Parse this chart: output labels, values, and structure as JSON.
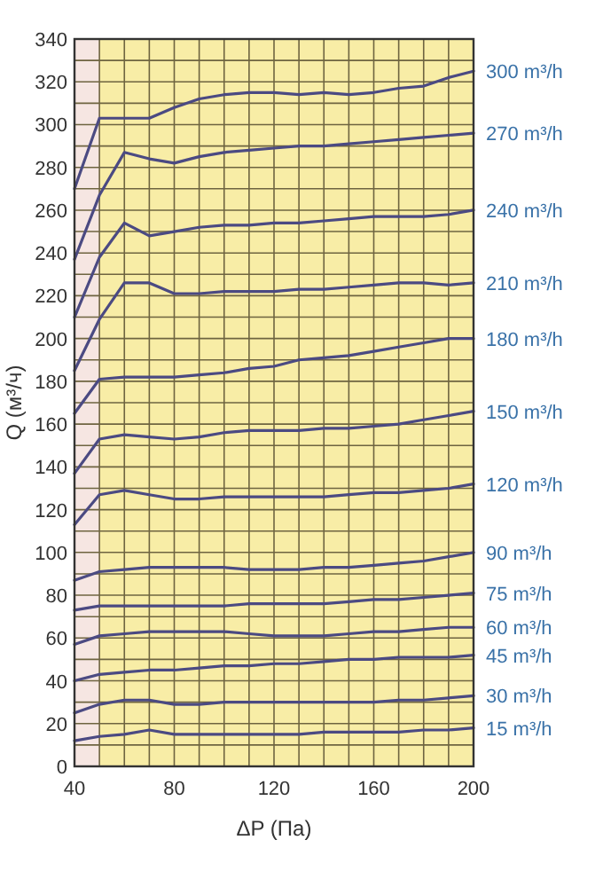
{
  "chart_data": {
    "type": "line",
    "xlabel": "ΔP (Па)",
    "ylabel": "Q (м³/ч)",
    "x": [
      40,
      50,
      60,
      70,
      80,
      90,
      100,
      110,
      120,
      130,
      140,
      150,
      160,
      170,
      180,
      190,
      200
    ],
    "xlim": [
      40,
      200
    ],
    "ylim": [
      0,
      340
    ],
    "xticks": [
      40,
      {
        "value": 50,
        "label": null
      },
      {
        "value": 60,
        "label": null
      },
      {
        "value": 70,
        "label": null
      },
      80,
      {
        "value": 90,
        "label": null
      },
      {
        "value": 100,
        "label": null
      },
      {
        "value": 110,
        "label": null
      },
      120,
      {
        "value": 130,
        "label": null
      },
      {
        "value": 140,
        "label": null
      },
      {
        "value": 150,
        "label": null
      },
      160,
      {
        "value": 170,
        "label": null
      },
      {
        "value": 180,
        "label": null
      },
      {
        "value": 190,
        "label": null
      },
      200
    ],
    "yticks": [
      0,
      {
        "value": 10,
        "label": null
      },
      20,
      {
        "value": 30,
        "label": null
      },
      40,
      {
        "value": 50,
        "label": null
      },
      60,
      {
        "value": 70,
        "label": null
      },
      80,
      {
        "value": 90,
        "label": null
      },
      100,
      {
        "value": 110,
        "label": null
      },
      120,
      {
        "value": 130,
        "label": null
      },
      140,
      {
        "value": 150,
        "label": null
      },
      160,
      {
        "value": 170,
        "label": null
      },
      180,
      {
        "value": 190,
        "label": null
      },
      200,
      {
        "value": 210,
        "label": null
      },
      220,
      {
        "value": 230,
        "label": null
      },
      240,
      {
        "value": 250,
        "label": null
      },
      260,
      {
        "value": 270,
        "label": null
      },
      280,
      {
        "value": 290,
        "label": null
      },
      300,
      {
        "value": 310,
        "label": null
      },
      320,
      {
        "value": 330,
        "label": null
      },
      340
    ],
    "grid": true,
    "legend": false,
    "line_style": "solid",
    "bands": [
      {
        "axis": "x",
        "from": 40,
        "to": 50,
        "color": "#f6e6e2"
      }
    ],
    "series": [
      {
        "name": "300 m³/h",
        "color": "#4b4a82",
        "values": [
          270,
          303,
          303,
          303,
          308,
          312,
          314,
          315,
          315,
          314,
          315,
          314,
          315,
          317,
          318,
          322,
          325
        ]
      },
      {
        "name": "270 m³/h",
        "color": "#4b4a82",
        "values": [
          237,
          267,
          287,
          284,
          282,
          285,
          287,
          288,
          289,
          290,
          290,
          291,
          292,
          293,
          294,
          295,
          296
        ]
      },
      {
        "name": "240 m³/h",
        "color": "#4b4a82",
        "values": [
          210,
          238,
          254,
          248,
          250,
          252,
          253,
          253,
          254,
          254,
          255,
          256,
          257,
          257,
          257,
          258,
          260
        ]
      },
      {
        "name": "210 m³/h",
        "color": "#4b4a82",
        "values": [
          185,
          209,
          226,
          226,
          221,
          221,
          222,
          222,
          222,
          223,
          223,
          224,
          225,
          226,
          226,
          225,
          226
        ]
      },
      {
        "name": "180 m³/h",
        "color": "#4b4a82",
        "values": [
          165,
          181,
          182,
          182,
          182,
          183,
          184,
          186,
          187,
          190,
          191,
          192,
          194,
          196,
          198,
          200,
          200
        ]
      },
      {
        "name": "150 m³/h",
        "color": "#4b4a82",
        "values": [
          137,
          153,
          155,
          154,
          153,
          154,
          156,
          157,
          157,
          157,
          158,
          158,
          159,
          160,
          162,
          164,
          166
        ]
      },
      {
        "name": "120 m³/h",
        "color": "#4b4a82",
        "values": [
          113,
          127,
          129,
          127,
          125,
          125,
          126,
          126,
          126,
          126,
          126,
          127,
          128,
          128,
          129,
          130,
          132
        ]
      },
      {
        "name": "90 m³/h",
        "color": "#4b4a82",
        "values": [
          87,
          91,
          92,
          93,
          93,
          93,
          93,
          92,
          92,
          92,
          93,
          93,
          94,
          95,
          96,
          98,
          100
        ]
      },
      {
        "name": "75 m³/h",
        "color": "#4b4a82",
        "values": [
          73,
          75,
          75,
          75,
          75,
          75,
          75,
          76,
          76,
          76,
          76,
          77,
          78,
          78,
          79,
          80,
          81
        ]
      },
      {
        "name": "60 m³/h",
        "color": "#4b4a82",
        "values": [
          57,
          61,
          62,
          63,
          63,
          63,
          63,
          62,
          61,
          61,
          61,
          62,
          63,
          63,
          64,
          65,
          65
        ]
      },
      {
        "name": "45 m³/h",
        "color": "#4b4a82",
        "values": [
          40,
          43,
          44,
          45,
          45,
          46,
          47,
          47,
          48,
          48,
          49,
          50,
          50,
          51,
          51,
          51,
          52
        ]
      },
      {
        "name": "30 m³/h",
        "color": "#4b4a82",
        "values": [
          25,
          29,
          31,
          31,
          29,
          29,
          30,
          30,
          30,
          30,
          30,
          30,
          30,
          31,
          31,
          32,
          33
        ]
      },
      {
        "name": "15 m³/h",
        "color": "#4b4a82",
        "values": [
          12,
          14,
          15,
          17,
          15,
          15,
          15,
          15,
          15,
          15,
          16,
          16,
          16,
          16,
          17,
          17,
          18
        ]
      }
    ]
  }
}
